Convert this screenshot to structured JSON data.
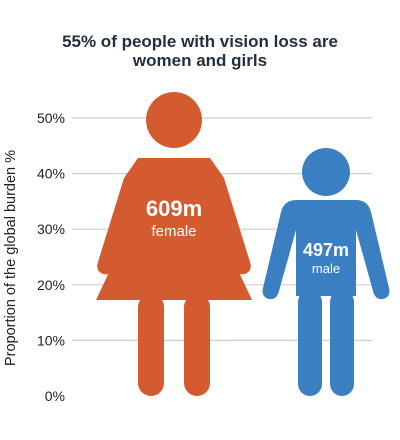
{
  "chart_data": {
    "type": "pictogram",
    "title_lines": [
      "55% of people with vision loss are",
      "women and girls"
    ],
    "ylabel": "Proportion of the global burden %",
    "yticks": [
      "0%",
      "10%",
      "20%",
      "30%",
      "40%",
      "50%"
    ],
    "ylim": [
      0,
      50
    ],
    "grid": true,
    "series": [
      {
        "name": "female",
        "count_label": "609m",
        "value": 55,
        "color": "#d45a30",
        "icon": "female-figure-icon"
      },
      {
        "name": "male",
        "count_label": "497m",
        "value": 45,
        "color": "#3a7fc1",
        "icon": "male-figure-icon"
      }
    ]
  }
}
